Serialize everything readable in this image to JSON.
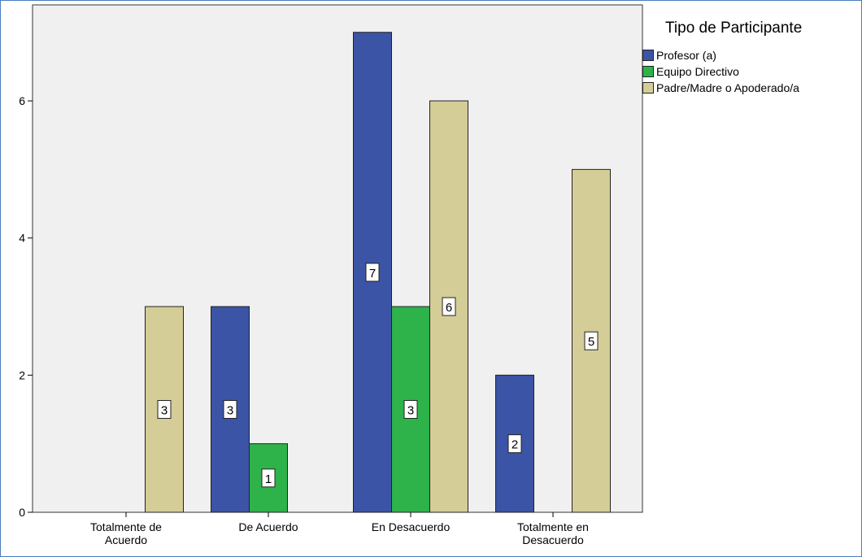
{
  "chart_data": {
    "type": "bar",
    "categories": [
      [
        "Totalmente de",
        "Acuerdo"
      ],
      [
        "De Acuerdo"
      ],
      [
        "En Desacuerdo"
      ],
      [
        "Totalmente en",
        "Desacuerdo"
      ]
    ],
    "series": [
      {
        "name": "Profesor (a)",
        "color": "#3b54a5",
        "values": [
          0,
          3,
          7,
          2
        ]
      },
      {
        "name": "Equipo Directivo",
        "color": "#2db34a",
        "values": [
          0,
          1,
          3,
          0
        ]
      },
      {
        "name": "Padre/Madre o Apoderado/a",
        "color": "#d5cd97",
        "values": [
          3,
          0,
          6,
          5
        ]
      }
    ],
    "legend_title": "Tipo de Participante",
    "legend_position": "top-right",
    "yticks": [
      0,
      2,
      4,
      6
    ],
    "ylim": [
      0,
      7.4
    ],
    "grid": false,
    "plot_background": "#f0f0f0",
    "title": "",
    "xlabel": "",
    "ylabel": ""
  }
}
